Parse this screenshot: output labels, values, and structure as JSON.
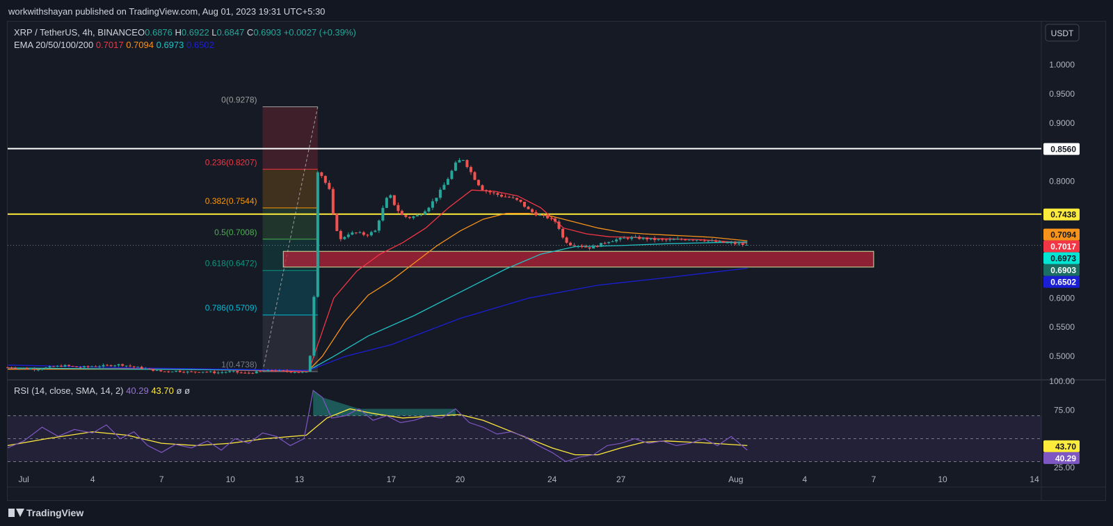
{
  "header": {
    "publisher": "workwithshayan published on TradingView.com, Aug 01, 2023 19:31 UTC+5:30"
  },
  "legend": {
    "symbol": "XRP / TetherUS, 4h, BINANCE",
    "o_label": "O",
    "o_value": "0.6876",
    "h_label": "H",
    "h_value": "0.6922",
    "l_label": "L",
    "l_value": "0.6847",
    "c_label": "C",
    "c_value": "0.6903",
    "change": "+0.0027 (+0.39%)",
    "ema_label": "EMA 20/50/100/200",
    "ema20": "0.7017",
    "ema50": "0.7094",
    "ema100": "0.6973",
    "ema200": "0.6502"
  },
  "rsi_legend": {
    "label": "RSI (14, close, SMA, 14, 2)",
    "rsi": "40.29",
    "sma": "43.70",
    "extra1": "ø",
    "extra2": "ø"
  },
  "currency_button": "USDT",
  "footer": {
    "brand": "TradingView"
  },
  "colors": {
    "bg": "#131722",
    "up": "#26a69a",
    "down": "#ef5350",
    "ema20": "#f23645",
    "ema50": "#f7931a",
    "ema100": "#22c1c3",
    "ema200": "#1a1fd6",
    "resistance": "#ffffff",
    "support_line": "#ffeb3b",
    "zone": "#b7233a",
    "rsi": "#7e57c2",
    "rsi_sma": "#ffeb3b"
  },
  "chart_data": {
    "type": "candlestick",
    "title": "XRP / TetherUS, 4h, BINANCE",
    "y_ticks": [
      "1.0000",
      "0.9500",
      "0.9000",
      "0.8000",
      "0.6000",
      "0.5500",
      "0.5000"
    ],
    "y_ticks_values": [
      1.0,
      0.95,
      0.9,
      0.8,
      0.6,
      0.55,
      0.5
    ],
    "ylim": [
      0.462,
      1.025
    ],
    "x_ticks": [
      "Jul",
      "4",
      "7",
      "10",
      "13",
      "17",
      "20",
      "24",
      "27",
      "Aug",
      "4",
      "7",
      "10",
      "14"
    ],
    "x_ticks_day": [
      1,
      4,
      7,
      10,
      13,
      17,
      20,
      24,
      27,
      32,
      35,
      38,
      41,
      45
    ],
    "xlim_day": [
      0.3,
      45.3
    ],
    "price_labels": [
      {
        "text": "0.8560",
        "value": 0.856,
        "bg": "#ffffff",
        "fg": "#131722"
      },
      {
        "text": "0.7438",
        "value": 0.7438,
        "bg": "#ffeb3b",
        "fg": "#131722"
      },
      {
        "text": "0.7094",
        "value": 0.7094,
        "bg": "#f7931a",
        "fg": "#131722"
      },
      {
        "text": "0.7017",
        "value": 0.7017,
        "bg": "#f23645",
        "fg": "#ffffff"
      },
      {
        "text": "0.6973",
        "value": 0.6973,
        "bg": "#00e5d4",
        "fg": "#131722"
      },
      {
        "text": "0.6903",
        "value": 0.6903,
        "bg": "#1a6e63",
        "fg": "#ffffff"
      },
      {
        "text": "0.6502",
        "value": 0.6502,
        "bg": "#1a1fd6",
        "fg": "#ffffff"
      }
    ],
    "horizontal_lines": [
      {
        "name": "resistance",
        "value": 0.856,
        "color": "#ffffff"
      },
      {
        "name": "support",
        "value": 0.7438,
        "color": "#ffeb3b"
      }
    ],
    "zone": {
      "top": 0.68,
      "bottom": 0.653,
      "day_start": 12.3,
      "day_end": 38.0
    },
    "fibonacci": {
      "day_start": 11.4,
      "day_end": 13.8,
      "levels": [
        {
          "label": "0(0.9278)",
          "value": 0.9278,
          "color": "#9e9e9e"
        },
        {
          "label": "0.236(0.8207)",
          "value": 0.8207,
          "color": "#f23645"
        },
        {
          "label": "0.382(0.7544)",
          "value": 0.7544,
          "color": "#ff9800"
        },
        {
          "label": "0.5(0.7008)",
          "value": 0.7008,
          "color": "#4caf50"
        },
        {
          "label": "0.618(0.6472)",
          "value": 0.6472,
          "color": "#089981"
        },
        {
          "label": "0.786(0.5709)",
          "value": 0.5709,
          "color": "#00bcd4"
        },
        {
          "label": "1(0.4738)",
          "value": 0.4738,
          "color": "#787b86"
        }
      ]
    },
    "price_path": [
      [
        0.3,
        0.481
      ],
      [
        1.0,
        0.479
      ],
      [
        1.6,
        0.478
      ],
      [
        2.2,
        0.482
      ],
      [
        2.8,
        0.484
      ],
      [
        3.4,
        0.481
      ],
      [
        4.0,
        0.483
      ],
      [
        4.6,
        0.484
      ],
      [
        5.2,
        0.486
      ],
      [
        5.8,
        0.482
      ],
      [
        6.4,
        0.478
      ],
      [
        7.0,
        0.474
      ],
      [
        7.6,
        0.475
      ],
      [
        8.2,
        0.473
      ],
      [
        8.8,
        0.474
      ],
      [
        9.4,
        0.472
      ],
      [
        10.0,
        0.474
      ],
      [
        10.6,
        0.471
      ],
      [
        11.2,
        0.473
      ],
      [
        11.8,
        0.476
      ],
      [
        12.4,
        0.474
      ],
      [
        13.0,
        0.473
      ],
      [
        13.4,
        0.472
      ],
      [
        13.62,
        0.57
      ],
      [
        13.72,
        0.82
      ],
      [
        13.9,
        0.815
      ],
      [
        14.1,
        0.8
      ],
      [
        14.3,
        0.785
      ],
      [
        14.45,
        0.745
      ],
      [
        14.6,
        0.72
      ],
      [
        14.8,
        0.7
      ],
      [
        15.1,
        0.71
      ],
      [
        15.5,
        0.712
      ],
      [
        15.9,
        0.708
      ],
      [
        16.3,
        0.715
      ],
      [
        16.6,
        0.75
      ],
      [
        16.9,
        0.78
      ],
      [
        17.2,
        0.755
      ],
      [
        17.5,
        0.74
      ],
      [
        17.8,
        0.738
      ],
      [
        18.2,
        0.742
      ],
      [
        18.6,
        0.755
      ],
      [
        19.0,
        0.775
      ],
      [
        19.4,
        0.8
      ],
      [
        19.8,
        0.83
      ],
      [
        20.1,
        0.84
      ],
      [
        20.4,
        0.82
      ],
      [
        20.7,
        0.8
      ],
      [
        21.0,
        0.785
      ],
      [
        21.4,
        0.78
      ],
      [
        21.8,
        0.775
      ],
      [
        22.2,
        0.772
      ],
      [
        22.6,
        0.765
      ],
      [
        23.0,
        0.75
      ],
      [
        23.4,
        0.742
      ],
      [
        23.8,
        0.738
      ],
      [
        24.2,
        0.73
      ],
      [
        24.5,
        0.7
      ],
      [
        24.8,
        0.692
      ],
      [
        25.2,
        0.69
      ],
      [
        25.6,
        0.686
      ],
      [
        26.0,
        0.69
      ],
      [
        26.4,
        0.697
      ],
      [
        26.8,
        0.7
      ],
      [
        27.2,
        0.703
      ],
      [
        27.6,
        0.703
      ],
      [
        28.0,
        0.702
      ],
      [
        28.5,
        0.7
      ],
      [
        29.0,
        0.699
      ],
      [
        29.5,
        0.7
      ],
      [
        30.0,
        0.701
      ],
      [
        30.5,
        0.7
      ],
      [
        31.0,
        0.697
      ],
      [
        31.4,
        0.695
      ],
      [
        31.8,
        0.694
      ],
      [
        32.2,
        0.692
      ],
      [
        32.5,
        0.69
      ]
    ],
    "ema20": [
      [
        0.3,
        0.478
      ],
      [
        6.0,
        0.479
      ],
      [
        13.4,
        0.474
      ],
      [
        13.8,
        0.52
      ],
      [
        14.5,
        0.6
      ],
      [
        15.5,
        0.646
      ],
      [
        16.5,
        0.675
      ],
      [
        17.5,
        0.695
      ],
      [
        18.5,
        0.72
      ],
      [
        19.5,
        0.755
      ],
      [
        20.5,
        0.785
      ],
      [
        21.5,
        0.783
      ],
      [
        22.5,
        0.775
      ],
      [
        23.5,
        0.755
      ],
      [
        24.5,
        0.72
      ],
      [
        25.5,
        0.71
      ],
      [
        26.5,
        0.705
      ],
      [
        27.5,
        0.704
      ],
      [
        28.5,
        0.702
      ],
      [
        29.5,
        0.701
      ],
      [
        30.5,
        0.7
      ],
      [
        31.5,
        0.697
      ],
      [
        32.5,
        0.694
      ]
    ],
    "ema50": [
      [
        0.3,
        0.478
      ],
      [
        6.0,
        0.478
      ],
      [
        13.4,
        0.476
      ],
      [
        14.0,
        0.5
      ],
      [
        15.0,
        0.56
      ],
      [
        16.0,
        0.605
      ],
      [
        17.0,
        0.63
      ],
      [
        18.0,
        0.66
      ],
      [
        19.0,
        0.69
      ],
      [
        20.0,
        0.715
      ],
      [
        21.0,
        0.735
      ],
      [
        22.0,
        0.745
      ],
      [
        23.0,
        0.745
      ],
      [
        24.0,
        0.74
      ],
      [
        25.0,
        0.73
      ],
      [
        26.0,
        0.72
      ],
      [
        27.0,
        0.713
      ],
      [
        28.0,
        0.71
      ],
      [
        29.0,
        0.708
      ],
      [
        30.0,
        0.706
      ],
      [
        31.0,
        0.704
      ],
      [
        32.5,
        0.698
      ]
    ],
    "ema100": [
      [
        0.3,
        0.48
      ],
      [
        6.0,
        0.478
      ],
      [
        13.4,
        0.476
      ],
      [
        14.5,
        0.5
      ],
      [
        16.0,
        0.535
      ],
      [
        18.0,
        0.57
      ],
      [
        20.0,
        0.61
      ],
      [
        22.0,
        0.65
      ],
      [
        23.5,
        0.675
      ],
      [
        25.0,
        0.688
      ],
      [
        27.0,
        0.69
      ],
      [
        29.0,
        0.693
      ],
      [
        31.0,
        0.695
      ],
      [
        32.5,
        0.696
      ]
    ],
    "ema200": [
      [
        0.3,
        0.485
      ],
      [
        6.0,
        0.48
      ],
      [
        13.4,
        0.476
      ],
      [
        15.0,
        0.5
      ],
      [
        17.0,
        0.52
      ],
      [
        20.0,
        0.565
      ],
      [
        23.0,
        0.6
      ],
      [
        26.0,
        0.622
      ],
      [
        29.0,
        0.635
      ],
      [
        32.5,
        0.651
      ]
    ],
    "rsi": {
      "ylim": [
        20,
        100
      ],
      "y_ticks": [
        "100.00",
        "75.00",
        "25.00"
      ],
      "y_ticks_values": [
        100,
        75,
        25
      ],
      "bands": [
        70,
        50,
        30
      ],
      "rsi_path": [
        [
          0.3,
          42
        ],
        [
          1.0,
          48
        ],
        [
          1.8,
          60
        ],
        [
          2.5,
          52
        ],
        [
          3.2,
          58
        ],
        [
          4.0,
          55
        ],
        [
          4.6,
          62
        ],
        [
          5.2,
          50
        ],
        [
          5.8,
          56
        ],
        [
          6.4,
          44
        ],
        [
          7.0,
          38
        ],
        [
          7.6,
          45
        ],
        [
          8.3,
          42
        ],
        [
          9.0,
          48
        ],
        [
          9.6,
          40
        ],
        [
          10.2,
          50
        ],
        [
          10.8,
          46
        ],
        [
          11.4,
          55
        ],
        [
          12.0,
          52
        ],
        [
          12.6,
          44
        ],
        [
          13.2,
          50
        ],
        [
          13.6,
          92
        ],
        [
          14.0,
          86
        ],
        [
          14.4,
          68
        ],
        [
          15.0,
          70
        ],
        [
          15.6,
          76
        ],
        [
          16.2,
          66
        ],
        [
          16.8,
          70
        ],
        [
          17.4,
          64
        ],
        [
          18.0,
          66
        ],
        [
          18.6,
          70
        ],
        [
          19.2,
          68
        ],
        [
          19.8,
          76
        ],
        [
          20.4,
          64
        ],
        [
          21.0,
          60
        ],
        [
          21.6,
          54
        ],
        [
          22.2,
          56
        ],
        [
          22.8,
          52
        ],
        [
          23.4,
          44
        ],
        [
          24.0,
          38
        ],
        [
          24.6,
          30
        ],
        [
          25.2,
          34
        ],
        [
          25.8,
          36
        ],
        [
          26.4,
          44
        ],
        [
          27.0,
          46
        ],
        [
          27.6,
          50
        ],
        [
          28.2,
          46
        ],
        [
          28.8,
          48
        ],
        [
          29.4,
          44
        ],
        [
          30.0,
          46
        ],
        [
          30.6,
          50
        ],
        [
          31.2,
          44
        ],
        [
          31.8,
          52
        ],
        [
          32.5,
          40
        ]
      ],
      "sma_path": [
        [
          0.3,
          44
        ],
        [
          2.0,
          50
        ],
        [
          4.0,
          56
        ],
        [
          5.5,
          53
        ],
        [
          7.0,
          46
        ],
        [
          8.5,
          44
        ],
        [
          10.0,
          46
        ],
        [
          11.5,
          50
        ],
        [
          13.3,
          53
        ],
        [
          14.2,
          68
        ],
        [
          15.2,
          76
        ],
        [
          16.2,
          72
        ],
        [
          17.5,
          68
        ],
        [
          19.0,
          70
        ],
        [
          20.0,
          71
        ],
        [
          21.0,
          66
        ],
        [
          22.0,
          58
        ],
        [
          23.0,
          50
        ],
        [
          24.0,
          42
        ],
        [
          25.0,
          36
        ],
        [
          26.0,
          36
        ],
        [
          27.0,
          42
        ],
        [
          28.0,
          47
        ],
        [
          29.0,
          48
        ],
        [
          30.0,
          47
        ],
        [
          31.0,
          46
        ],
        [
          32.5,
          44
        ]
      ]
    }
  }
}
